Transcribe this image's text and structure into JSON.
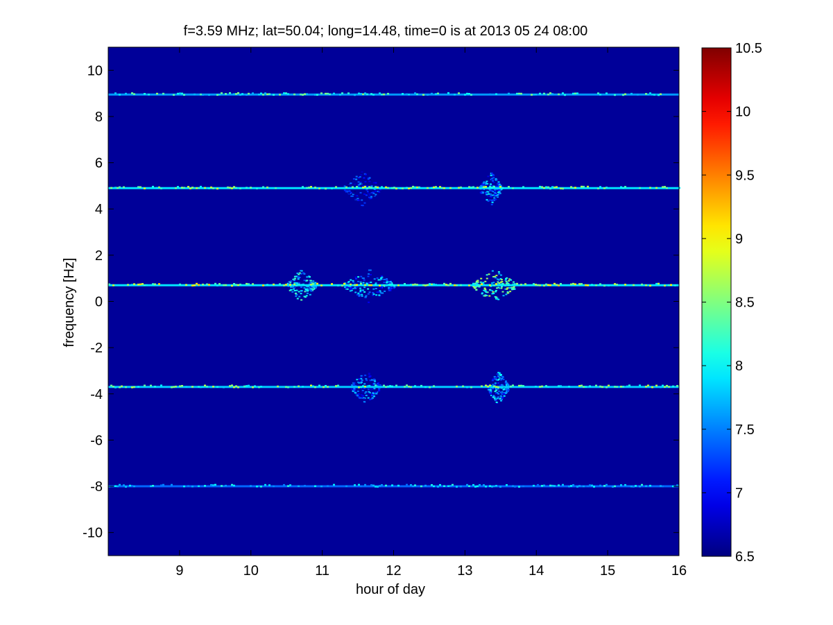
{
  "chart_data": {
    "type": "heatmap",
    "title": "f=3.59 MHz;  lat=50.04; long=14.48, time=0 is at 2013 05 24 08:00",
    "xlabel": "hour of day",
    "ylabel": "frequency [Hz]",
    "xlim": [
      8,
      16
    ],
    "ylim": [
      -11,
      11
    ],
    "xticks": [
      9,
      10,
      11,
      12,
      13,
      14,
      15,
      16
    ],
    "yticks": [
      -10,
      -8,
      -6,
      -4,
      -2,
      0,
      2,
      4,
      6,
      8,
      10
    ],
    "colorbar": {
      "range": [
        6.5,
        10.5
      ],
      "ticks": [
        6.5,
        7,
        7.5,
        8,
        8.5,
        9,
        9.5,
        10,
        10.5
      ],
      "colormap": "jet"
    },
    "background_level": 6.6,
    "lines": [
      {
        "frequency": 8.95,
        "base": 7.6,
        "peak": 8.6
      },
      {
        "frequency": 4.9,
        "base": 7.9,
        "peak": 8.9
      },
      {
        "frequency": 0.7,
        "base": 7.9,
        "peak": 9.2
      },
      {
        "frequency": -3.7,
        "base": 7.8,
        "peak": 8.8
      },
      {
        "frequency": -8.0,
        "base": 7.4,
        "peak": 8.2
      }
    ],
    "enhancements": [
      {
        "frequency": 0.7,
        "hour_start": 10.5,
        "hour_end": 10.9,
        "level": 8.4
      },
      {
        "frequency": 0.7,
        "hour_start": 11.3,
        "hour_end": 12.0,
        "level": 8.1
      },
      {
        "frequency": 0.7,
        "hour_start": 13.1,
        "hour_end": 13.7,
        "level": 8.8
      },
      {
        "frequency": 4.9,
        "hour_start": 11.3,
        "hour_end": 11.8,
        "level": 7.6
      },
      {
        "frequency": 4.9,
        "hour_start": 13.2,
        "hour_end": 13.5,
        "level": 8.0
      },
      {
        "frequency": -3.7,
        "hour_start": 11.4,
        "hour_end": 11.8,
        "level": 7.9
      },
      {
        "frequency": -3.7,
        "hour_start": 13.3,
        "hour_end": 13.6,
        "level": 8.1
      }
    ],
    "grid": false
  }
}
